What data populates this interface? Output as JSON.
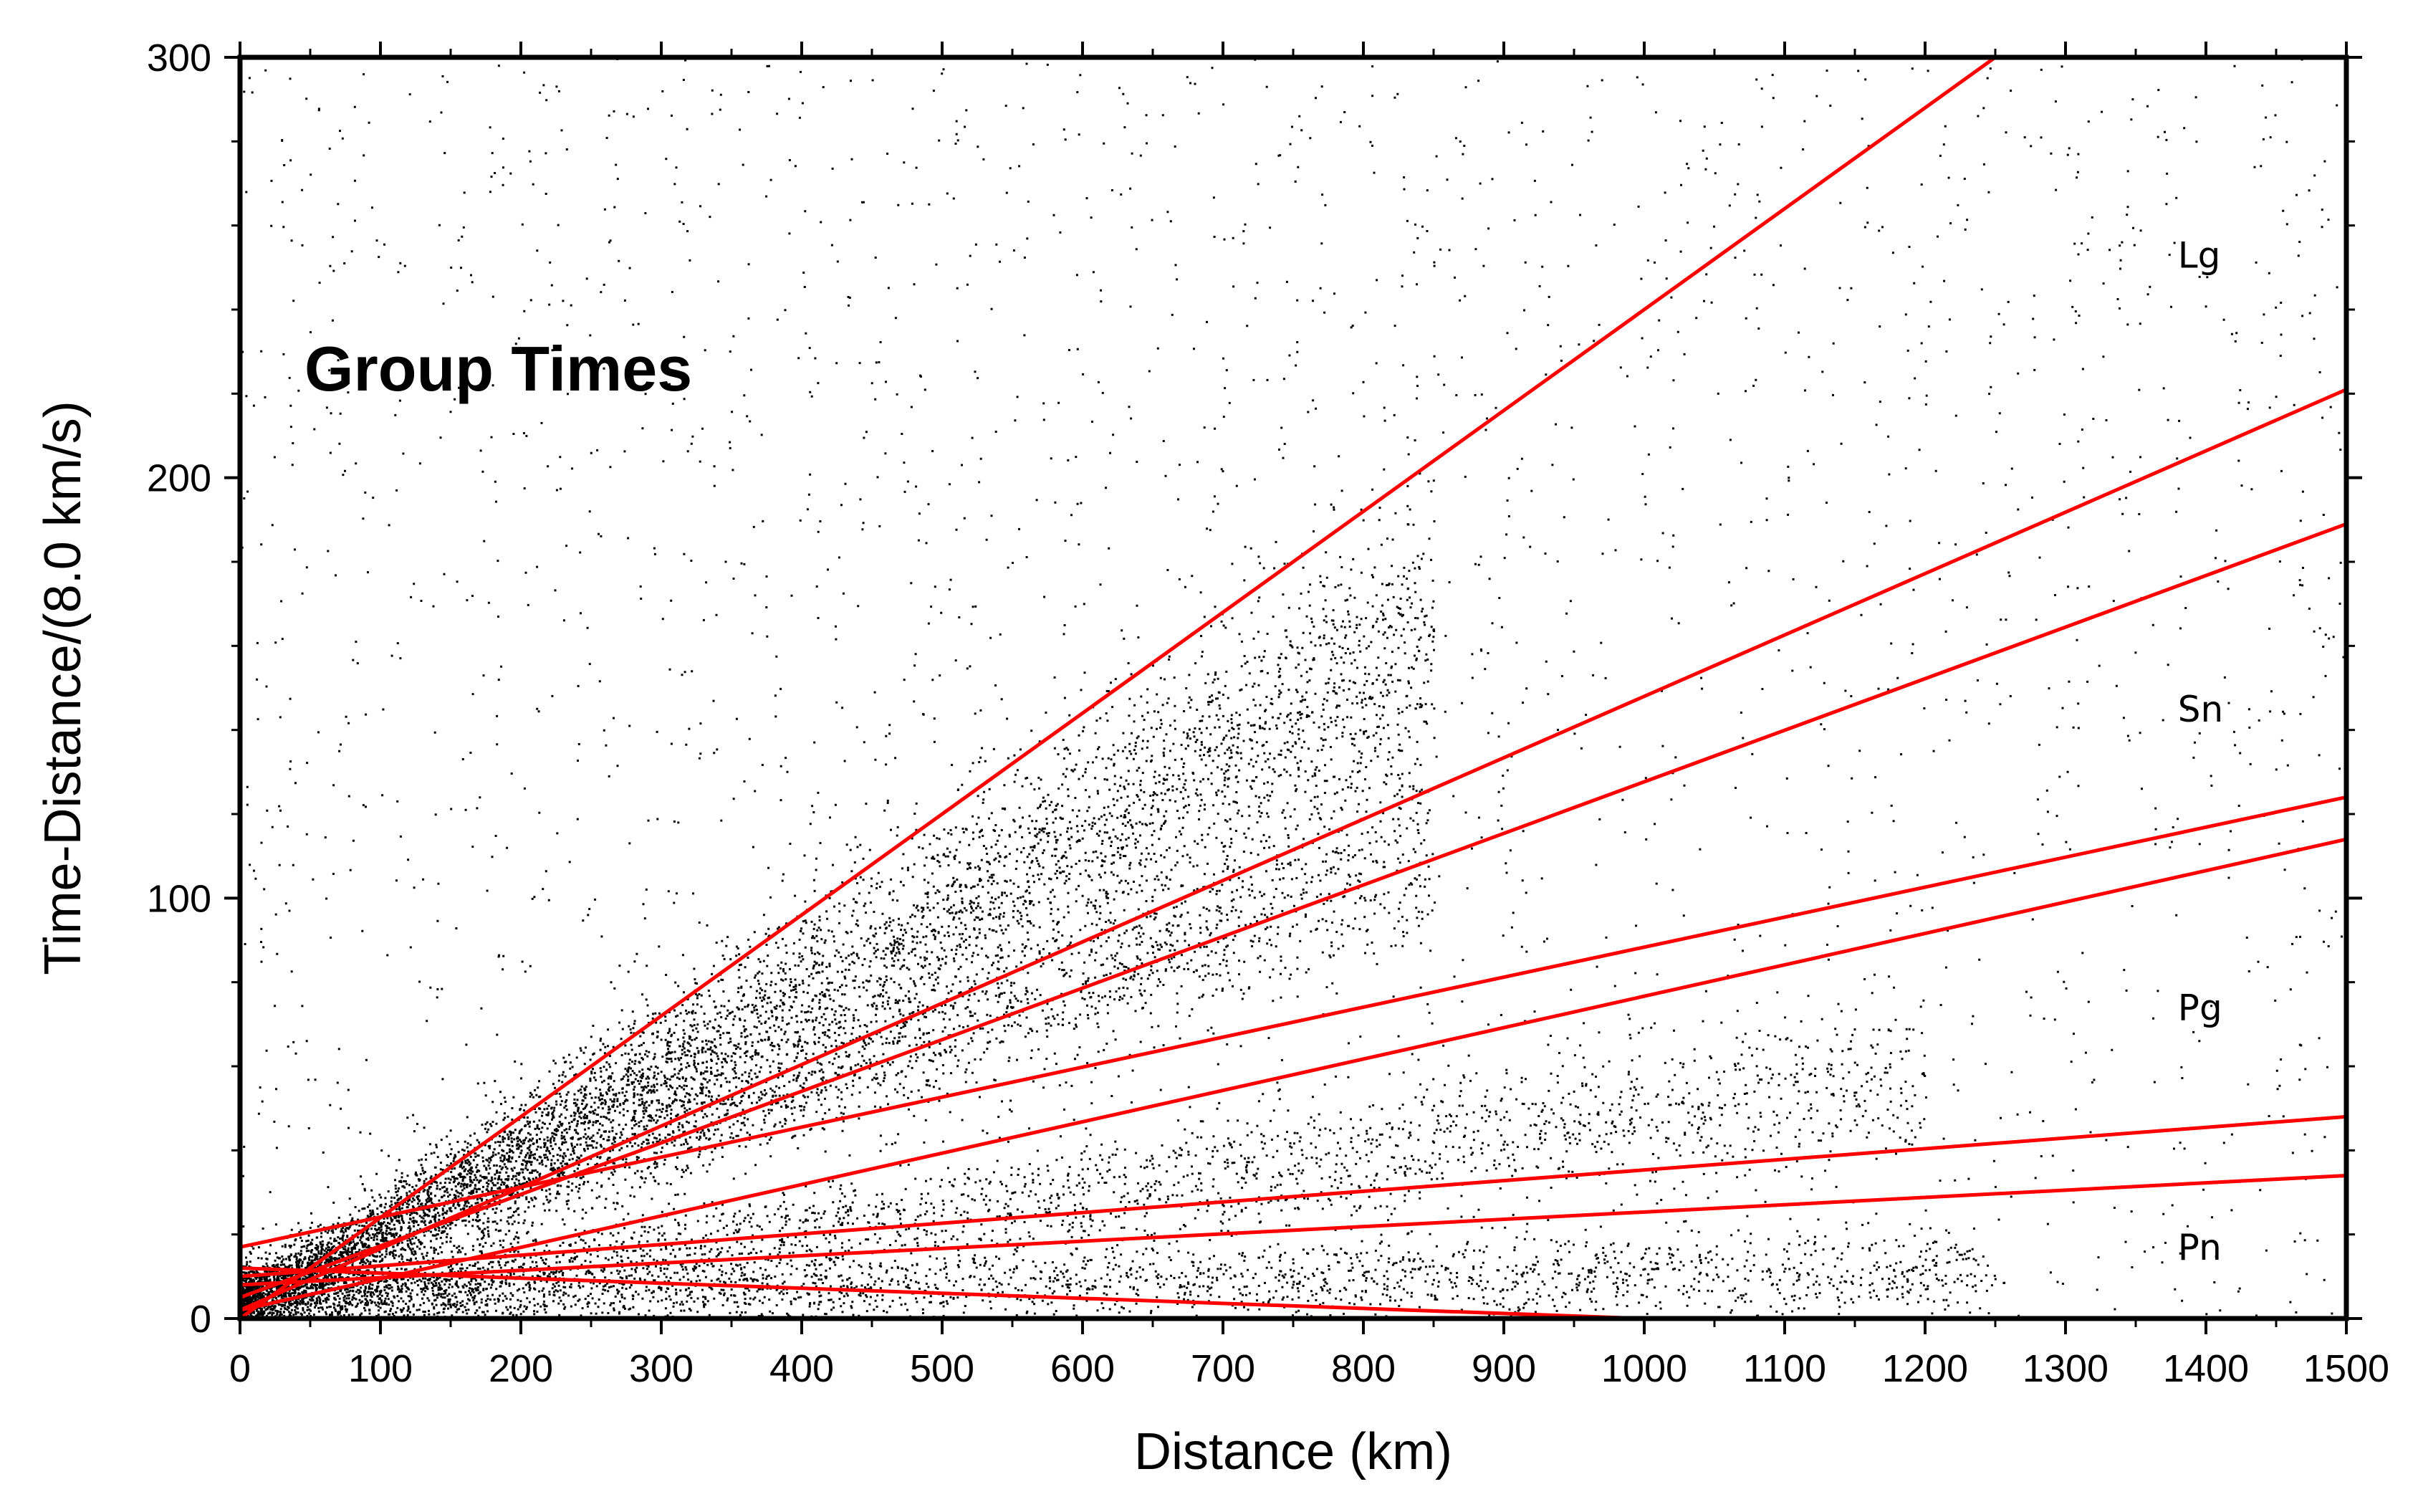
{
  "chart_data": {
    "type": "scatter",
    "title": "Group Times",
    "xlabel": "Distance (km)",
    "ylabel": "Time-Distance/(8.0 km/s)",
    "xlim": [
      0,
      1500
    ],
    "ylim": [
      0,
      300
    ],
    "grid": false,
    "xticks": [
      0,
      100,
      200,
      300,
      400,
      500,
      600,
      700,
      800,
      900,
      1000,
      1100,
      1200,
      1300,
      1400,
      1500
    ],
    "yticks": [
      0,
      100,
      200,
      300
    ],
    "phase_labels": [
      {
        "text": "Lg",
        "x": 1380,
        "y": 250
      },
      {
        "text": "Sn",
        "x": 1380,
        "y": 142
      },
      {
        "text": "Pg",
        "x": 1380,
        "y": 71
      },
      {
        "text": "Pn",
        "x": 1380,
        "y": 14
      }
    ],
    "scatter_clusters": [
      {
        "name": "Lg",
        "y0": 3,
        "slope": 0.185,
        "spread": 0.28,
        "xmax": 850,
        "count": 5500
      },
      {
        "name": "Sn",
        "y0": 6,
        "slope": 0.125,
        "spread": 0.22,
        "xmax": 850,
        "count": 2500
      },
      {
        "name": "Pg",
        "y0": 3,
        "slope": 0.045,
        "spread": 0.35,
        "xmax": 1200,
        "count": 2500
      },
      {
        "name": "Pn",
        "y0": 5,
        "slope": 0.005,
        "spread": 0.6,
        "xmax": 1250,
        "count": 2500
      },
      {
        "name": "background",
        "count": 2600
      }
    ],
    "series": [
      {
        "name": "Lg upper bound",
        "color": "#ff0000",
        "x": [
          0,
          1250
        ],
        "y": [
          0,
          300
        ]
      },
      {
        "name": "Lg lower bound",
        "color": "#ff0000",
        "x": [
          0,
          1500
        ],
        "y": [
          2,
          221
        ]
      },
      {
        "name": "Sn upper bound",
        "color": "#ff0000",
        "x": [
          0,
          1500
        ],
        "y": [
          5,
          189
        ]
      },
      {
        "name": "Sn lower bound",
        "color": "#ff0000",
        "x": [
          0,
          1500
        ],
        "y": [
          17,
          124
        ]
      },
      {
        "name": "Pg upper bound",
        "color": "#ff0000",
        "x": [
          0,
          1500
        ],
        "y": [
          2,
          114
        ]
      },
      {
        "name": "Pg lower bound",
        "color": "#ff0000",
        "x": [
          0,
          1500
        ],
        "y": [
          10,
          48
        ]
      },
      {
        "name": "Pn upper bound",
        "color": "#ff0000",
        "x": [
          0,
          1500
        ],
        "y": [
          8,
          34
        ]
      },
      {
        "name": "Pn lower bound",
        "color": "#ff0000",
        "x": [
          0,
          1000
        ],
        "y": [
          12,
          0
        ]
      }
    ]
  }
}
